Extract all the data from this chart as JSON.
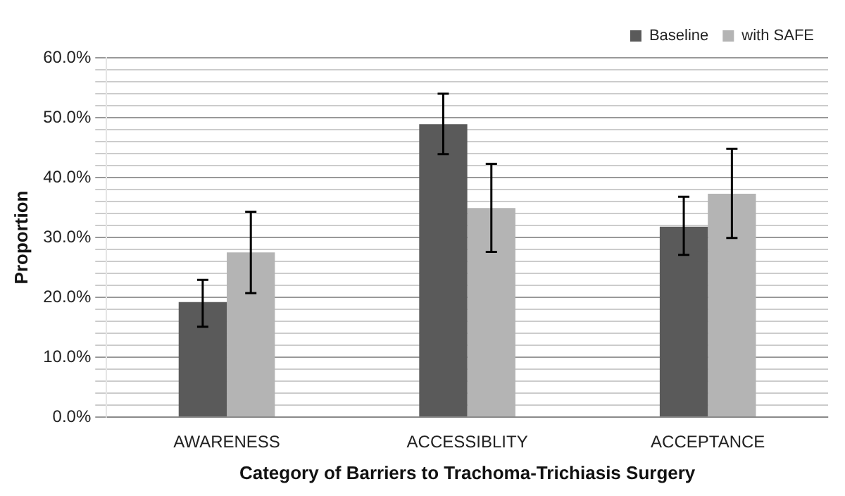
{
  "chart_data": {
    "type": "bar",
    "xlabel": "Category of Barriers to Trachoma-Trichiasis Surgery",
    "ylabel": "Proportion",
    "categories": [
      "AWARENESS",
      "ACCESSIBLITY",
      "ACCEPTANCE"
    ],
    "series": [
      {
        "name": "Baseline",
        "color": "#5a5a5a",
        "values": [
          19.2,
          48.9,
          31.8
        ],
        "errors": [
          [
            15.1,
            22.9
          ],
          [
            43.9,
            54.0
          ],
          [
            27.1,
            36.8
          ]
        ]
      },
      {
        "name": "with SAFE",
        "color": "#b4b4b4",
        "values": [
          27.5,
          34.9,
          37.3
        ],
        "errors": [
          [
            20.7,
            34.3
          ],
          [
            27.6,
            42.3
          ],
          [
            29.9,
            44.8
          ]
        ]
      }
    ],
    "ylim": [
      0,
      60
    ],
    "yticks": [
      {
        "value": 0,
        "label": "0.0%"
      },
      {
        "value": 2,
        "label": null
      },
      {
        "value": 4,
        "label": null
      },
      {
        "value": 6,
        "label": null
      },
      {
        "value": 8,
        "label": null
      },
      {
        "value": 10,
        "label": "10.0%"
      },
      {
        "value": 12,
        "label": null
      },
      {
        "value": 14,
        "label": null
      },
      {
        "value": 16,
        "label": null
      },
      {
        "value": 18,
        "label": null
      },
      {
        "value": 20,
        "label": "20.0%"
      },
      {
        "value": 22,
        "label": null
      },
      {
        "value": 24,
        "label": null
      },
      {
        "value": 26,
        "label": null
      },
      {
        "value": 28,
        "label": null
      },
      {
        "value": 30,
        "label": "30.0%"
      },
      {
        "value": 32,
        "label": null
      },
      {
        "value": 34,
        "label": null
      },
      {
        "value": 36,
        "label": null
      },
      {
        "value": 38,
        "label": null
      },
      {
        "value": 40,
        "label": "40.0%"
      },
      {
        "value": 42,
        "label": null
      },
      {
        "value": 44,
        "label": null
      },
      {
        "value": 46,
        "label": null
      },
      {
        "value": 48,
        "label": null
      },
      {
        "value": 50,
        "label": "50.0%"
      },
      {
        "value": 52,
        "label": null
      },
      {
        "value": 54,
        "label": null
      },
      {
        "value": 56,
        "label": null
      },
      {
        "value": 58,
        "label": null
      },
      {
        "value": 60,
        "label": "60.0%"
      }
    ],
    "grid": "y",
    "legend": "top right"
  }
}
